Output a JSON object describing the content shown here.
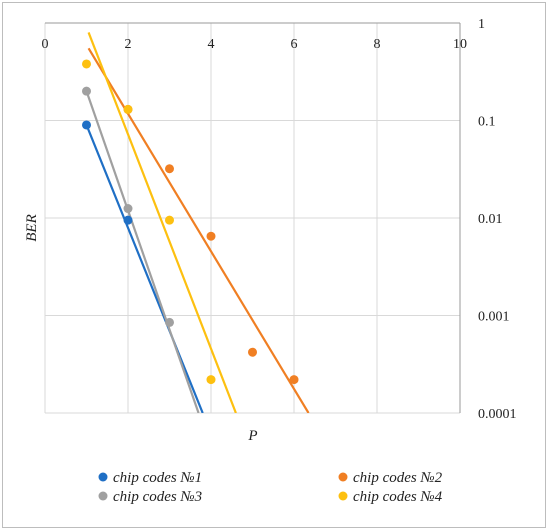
{
  "chart_data": {
    "type": "scatter",
    "xlabel": "P",
    "ylabel": "BER",
    "xlim": [
      0,
      10
    ],
    "ylim": [
      0.0001,
      1
    ],
    "yscale": "log",
    "x_ticks": [
      "0",
      "2",
      "4",
      "6",
      "8",
      "10"
    ],
    "y_ticks": [
      "1",
      "0.1",
      "0.01",
      "0.001",
      "0.0001"
    ],
    "grid": true,
    "legend_position": "bottom",
    "series": [
      {
        "name": "chip codes №1",
        "color": "#1f6fc5",
        "points": [
          [
            1,
            0.09
          ],
          [
            2,
            0.0095
          ]
        ],
        "trend": [
          [
            1,
            0.09
          ],
          [
            3.8,
            0.0001
          ]
        ]
      },
      {
        "name": "chip codes №2",
        "color": "#f07f23",
        "points": [
          [
            2,
            0.13
          ],
          [
            3,
            0.032
          ],
          [
            4,
            0.0065
          ],
          [
            5,
            0.00042
          ],
          [
            6,
            0.00022
          ]
        ],
        "trend": [
          [
            1.05,
            0.55
          ],
          [
            6.35,
            0.0001
          ]
        ]
      },
      {
        "name": "chip codes №3",
        "color": "#a0a0a0",
        "points": [
          [
            1,
            0.2
          ],
          [
            2,
            0.0125
          ],
          [
            3,
            0.00085
          ]
        ],
        "trend": [
          [
            1,
            0.2
          ],
          [
            3.7,
            0.0001
          ]
        ]
      },
      {
        "name": "chip codes №4",
        "color": "#fdc010",
        "points": [
          [
            1,
            0.38
          ],
          [
            2,
            0.13
          ],
          [
            3,
            0.0095
          ],
          [
            4,
            0.00022
          ]
        ],
        "trend": [
          [
            1.05,
            0.8
          ],
          [
            4.6,
            0.0001
          ]
        ]
      }
    ]
  }
}
